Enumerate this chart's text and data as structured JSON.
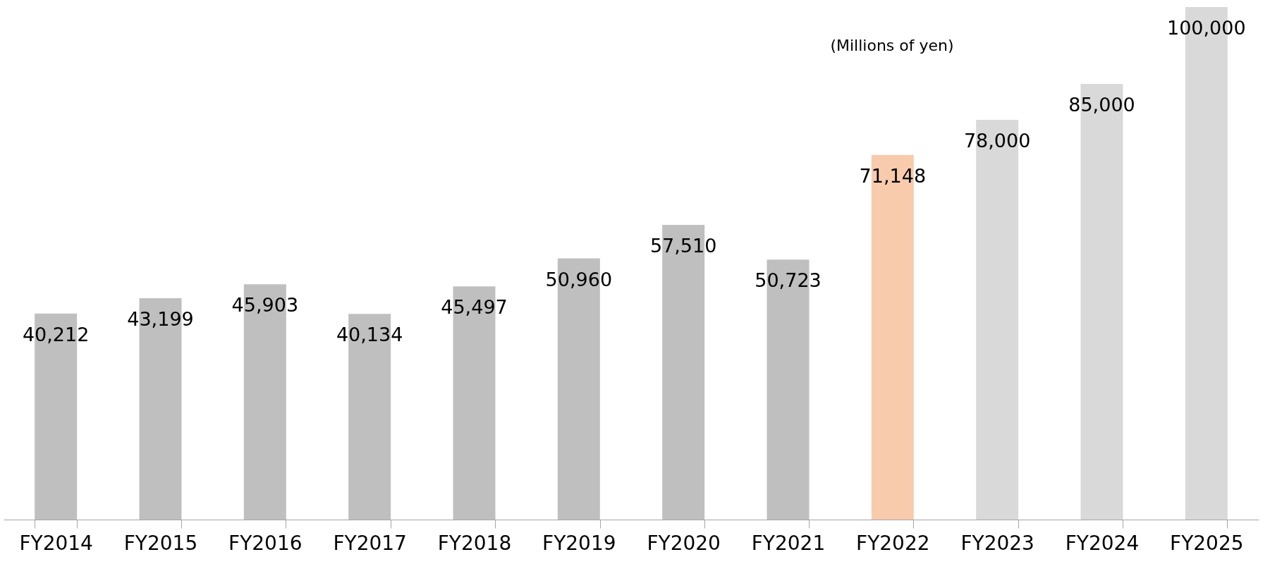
{
  "chart_data": {
    "type": "bar",
    "categories": [
      "FY2014",
      "FY2015",
      "FY2016",
      "FY2017",
      "FY2018",
      "FY2019",
      "FY2020",
      "FY2021",
      "FY2022",
      "FY2023",
      "FY2024",
      "FY2025"
    ],
    "values": [
      40212,
      43199,
      45903,
      40134,
      45497,
      50960,
      57510,
      50723,
      71148,
      78000,
      85000,
      100000
    ],
    "value_labels": [
      "40,212",
      "43,199",
      "45,903",
      "40,134",
      "45,497",
      "50,960",
      "57,510",
      "50,723",
      "71,148",
      "78,000",
      "85,000",
      "100,000"
    ],
    "colors": [
      "#bfbfbf",
      "#bfbfbf",
      "#bfbfbf",
      "#bfbfbf",
      "#bfbfbf",
      "#bfbfbf",
      "#bfbfbf",
      "#bfbfbf",
      "#f8cbad",
      "#d9d9d9",
      "#d9d9d9",
      "#d9d9d9"
    ],
    "annotations": [
      "(Millions of yen)"
    ],
    "grid": false
  }
}
